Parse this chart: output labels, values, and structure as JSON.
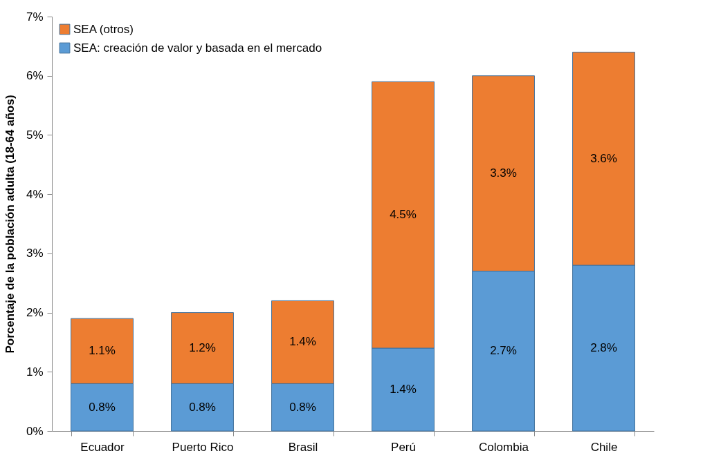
{
  "chart_data": {
    "type": "bar",
    "stacked": true,
    "ylabel": "Porcentaje de la población adulta (18-64 años)",
    "categories": [
      "Ecuador",
      "Puerto Rico",
      "Brasil",
      "Perú",
      "Colombia",
      "Chile"
    ],
    "series": [
      {
        "name": "SEA: creación de valor y basada en el mercado",
        "color": "#5b9bd5",
        "values": [
          0.8,
          0.8,
          0.8,
          1.4,
          2.7,
          2.8
        ],
        "value_labels": [
          "0.8%",
          "0.8%",
          "0.8%",
          "1.4%",
          "2.7%",
          "2.8%"
        ]
      },
      {
        "name": "SEA (otros)",
        "color": "#ed7d31",
        "values": [
          1.1,
          1.2,
          1.4,
          4.5,
          3.3,
          3.6
        ],
        "value_labels": [
          "1.1%",
          "1.2%",
          "1.4%",
          "4.5%",
          "3.3%",
          "3.6%"
        ]
      }
    ],
    "ylim": [
      0,
      7
    ],
    "yticks": [
      {
        "value": 0,
        "label": "0%"
      },
      {
        "value": 1,
        "label": "1%"
      },
      {
        "value": 2,
        "label": "2%"
      },
      {
        "value": 3,
        "label": "3%"
      },
      {
        "value": 4,
        "label": "4%"
      },
      {
        "value": 5,
        "label": "5%"
      },
      {
        "value": 6,
        "label": "6%"
      },
      {
        "value": 7,
        "label": "7%"
      }
    ],
    "grid": false,
    "legend": "top left"
  }
}
